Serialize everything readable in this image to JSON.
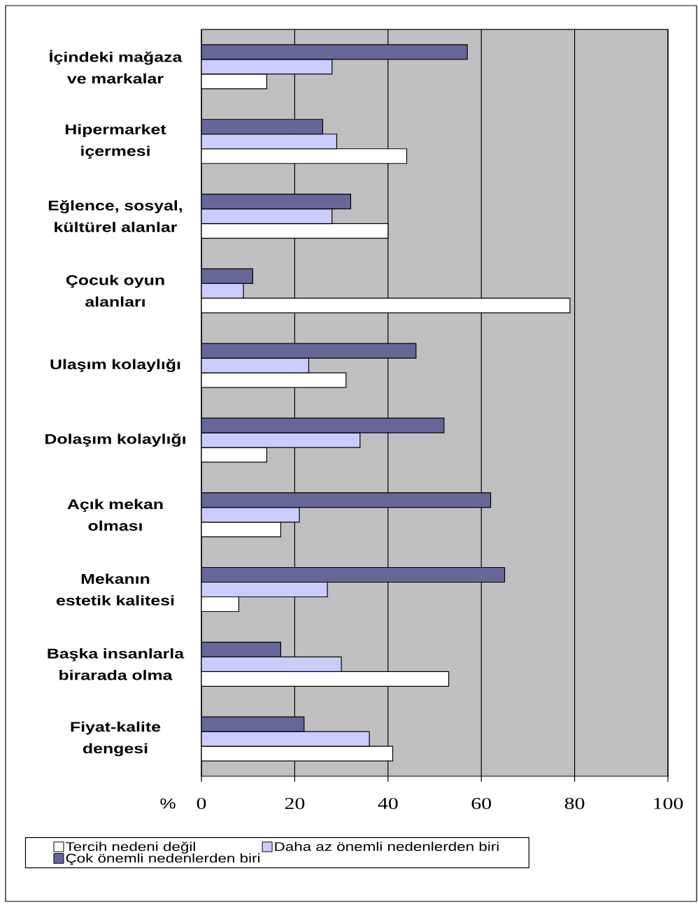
{
  "chart_data": {
    "type": "bar",
    "orientation": "horizontal",
    "xlabel": "%",
    "categories": [
      "İçindeki mağaza ve markalar",
      "Hipermarket içermesi",
      "Eğlence, sosyal, kültürel alanlar",
      "Çocuk oyun alanları",
      "Ulaşım kolaylığı",
      "Dolaşım kolaylığı",
      "Açık mekan olması",
      "Mekanın estetik kalitesi",
      "Başka insanlarla birarada olma",
      "Fiyat-kalite dengesi"
    ],
    "series": [
      {
        "name": "Tercih nedeni değil",
        "color": "#ffffff",
        "values": [
          14,
          44,
          40,
          79,
          31,
          14,
          17,
          8,
          53,
          41
        ]
      },
      {
        "name": "Daha az önemli nedenlerden biri",
        "color": "#ccccff",
        "values": [
          28,
          29,
          28,
          9,
          23,
          34,
          21,
          27,
          30,
          36
        ]
      },
      {
        "name": "Çok önemli nedenlerden biri",
        "color": "#666699",
        "values": [
          57,
          26,
          32,
          11,
          46,
          52,
          62,
          65,
          17,
          22
        ]
      }
    ],
    "xlim": [
      0,
      100
    ],
    "xticks": [
      0,
      20,
      40,
      60,
      80,
      100
    ],
    "grid": "x",
    "legend": "bottom"
  }
}
